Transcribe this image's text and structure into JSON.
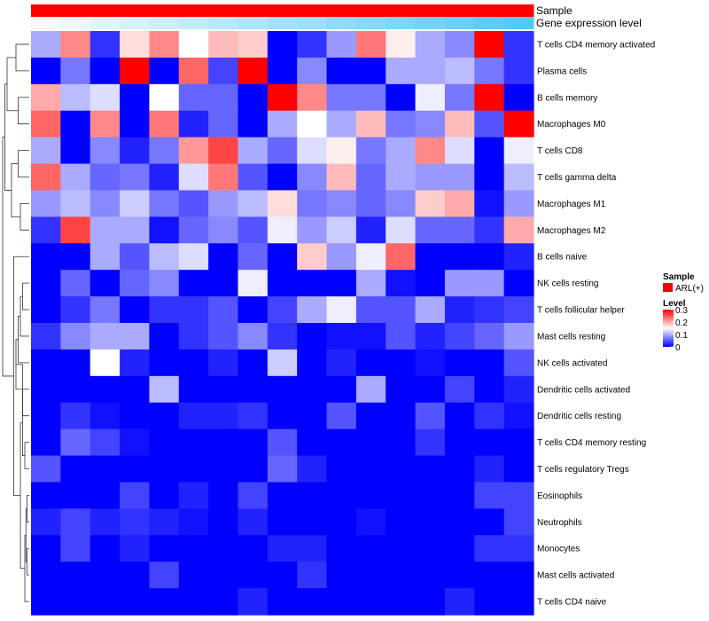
{
  "chart_data": {
    "type": "heatmap",
    "title": "",
    "annotation_tracks": [
      "Sample",
      "Gene expression level"
    ],
    "annotation_colors": {
      "sample": "#ff0000",
      "gene_low": "#f4fbfe",
      "gene_high": "#55c9f5"
    },
    "gene_expression_ramp": [
      0.0,
      0.06,
      0.13,
      0.19,
      0.25,
      0.31,
      0.38,
      0.44,
      0.5,
      0.56,
      0.63,
      0.69,
      0.75,
      0.81,
      0.88,
      0.94,
      1.0
    ],
    "rows": [
      "T cells CD4 memory activated",
      "Plasma cells",
      "B cells memory",
      "Macrophages M0",
      "T cells CD8",
      "T cells gamma delta",
      "Macrophages M1",
      "Macrophages M2",
      "B cells naive",
      "NK cells resting",
      "T cells follicular helper",
      "Mast cells resting",
      "NK cells activated",
      "Dendritic cells activated",
      "Dendritic cells resting",
      "T cells CD4 memory resting",
      "T cells regulatory  Tregs",
      "Eosinophils",
      "Neutrophils",
      "Monocytes",
      "Mast cells activated",
      "T cells CD4 naive"
    ],
    "n_columns": 17,
    "values": [
      [
        0.1,
        0.22,
        0.03,
        0.17,
        0.22,
        0.15,
        0.19,
        0.18,
        0.0,
        0.03,
        0.09,
        0.23,
        0.16,
        0.1,
        0.08,
        0.3,
        0.03
      ],
      [
        0.0,
        0.07,
        0.0,
        0.3,
        0.0,
        0.24,
        0.04,
        0.3,
        0.0,
        0.08,
        0.0,
        0.0,
        0.1,
        0.1,
        0.11,
        0.07,
        0.03
      ],
      [
        0.2,
        0.11,
        0.13,
        0.0,
        0.15,
        0.06,
        0.06,
        0.0,
        0.3,
        0.22,
        0.07,
        0.07,
        0.0,
        0.14,
        0.07,
        0.3,
        0.0
      ],
      [
        0.24,
        0.0,
        0.22,
        0.0,
        0.23,
        0.02,
        0.06,
        0.0,
        0.1,
        0.15,
        0.1,
        0.19,
        0.07,
        0.08,
        0.19,
        0.05,
        0.3
      ],
      [
        0.1,
        0.0,
        0.08,
        0.02,
        0.07,
        0.21,
        0.26,
        0.1,
        0.06,
        0.13,
        0.16,
        0.07,
        0.1,
        0.22,
        0.13,
        0.0,
        0.14
      ],
      [
        0.24,
        0.1,
        0.06,
        0.07,
        0.02,
        0.13,
        0.23,
        0.05,
        0.0,
        0.08,
        0.19,
        0.06,
        0.1,
        0.09,
        0.09,
        0.0,
        0.11
      ],
      [
        0.09,
        0.11,
        0.08,
        0.12,
        0.07,
        0.05,
        0.09,
        0.11,
        0.17,
        0.07,
        0.08,
        0.06,
        0.08,
        0.18,
        0.2,
        0.01,
        0.09
      ],
      [
        0.03,
        0.26,
        0.1,
        0.1,
        0.01,
        0.06,
        0.08,
        0.05,
        0.14,
        0.09,
        0.12,
        0.02,
        0.13,
        0.06,
        0.06,
        0.03,
        0.2
      ],
      [
        0.0,
        0.0,
        0.1,
        0.05,
        0.11,
        0.13,
        0.0,
        0.06,
        0.0,
        0.18,
        0.09,
        0.14,
        0.24,
        0.0,
        0.0,
        0.0,
        0.02
      ],
      [
        0.0,
        0.06,
        0.0,
        0.06,
        0.08,
        0.0,
        0.0,
        0.14,
        0.0,
        0.0,
        0.0,
        0.1,
        0.01,
        0.0,
        0.09,
        0.09,
        0.0
      ],
      [
        0.0,
        0.03,
        0.07,
        0.0,
        0.03,
        0.03,
        0.05,
        0.0,
        0.04,
        0.1,
        0.14,
        0.05,
        0.05,
        0.1,
        0.02,
        0.03,
        0.04
      ],
      [
        0.03,
        0.08,
        0.1,
        0.1,
        0.0,
        0.03,
        0.05,
        0.08,
        0.03,
        0.0,
        0.01,
        0.01,
        0.05,
        0.02,
        0.04,
        0.06,
        0.09
      ],
      [
        0.0,
        0.0,
        0.15,
        0.02,
        0.0,
        0.0,
        0.02,
        0.0,
        0.12,
        0.0,
        0.02,
        0.0,
        0.0,
        0.01,
        0.0,
        0.0,
        0.05
      ],
      [
        0.0,
        0.0,
        0.0,
        0.0,
        0.11,
        0.0,
        0.0,
        0.0,
        0.0,
        0.0,
        0.0,
        0.1,
        0.0,
        0.0,
        0.04,
        0.0,
        0.02
      ],
      [
        0.0,
        0.03,
        0.01,
        0.0,
        0.0,
        0.02,
        0.02,
        0.03,
        0.0,
        0.0,
        0.05,
        0.0,
        0.0,
        0.05,
        0.0,
        0.03,
        0.01
      ],
      [
        0.0,
        0.06,
        0.04,
        0.01,
        0.0,
        0.0,
        0.0,
        0.0,
        0.05,
        0.0,
        0.0,
        0.0,
        0.0,
        0.03,
        0.0,
        0.0,
        0.0
      ],
      [
        0.05,
        0.0,
        0.0,
        0.0,
        0.0,
        0.0,
        0.0,
        0.0,
        0.06,
        0.02,
        0.0,
        0.0,
        0.0,
        0.0,
        0.0,
        0.02,
        0.0
      ],
      [
        0.0,
        0.0,
        0.0,
        0.04,
        0.0,
        0.02,
        0.0,
        0.04,
        0.0,
        0.0,
        0.0,
        0.0,
        0.0,
        0.0,
        0.0,
        0.04,
        0.04
      ],
      [
        0.02,
        0.04,
        0.02,
        0.03,
        0.02,
        0.01,
        0.0,
        0.02,
        0.0,
        0.0,
        0.0,
        0.01,
        0.0,
        0.0,
        0.0,
        0.0,
        0.04
      ],
      [
        0.0,
        0.04,
        0.0,
        0.02,
        0.0,
        0.0,
        0.0,
        0.0,
        0.02,
        0.02,
        0.0,
        0.0,
        0.0,
        0.0,
        0.0,
        0.03,
        0.03
      ],
      [
        0.0,
        0.0,
        0.0,
        0.0,
        0.04,
        0.0,
        0.0,
        0.0,
        0.0,
        0.03,
        0.0,
        0.0,
        0.0,
        0.0,
        0.0,
        0.0,
        0.0
      ],
      [
        0.0,
        0.0,
        0.0,
        0.0,
        0.0,
        0.0,
        0.0,
        0.02,
        0.0,
        0.0,
        0.0,
        0.0,
        0.0,
        0.0,
        0.02,
        0.0,
        0.0
      ]
    ],
    "color_scale": {
      "min": 0,
      "mid": 0.15,
      "max": 0.3,
      "low": "#0000ff",
      "mid_color": "#ffffff",
      "high": "#ff0000"
    },
    "row_dendrogram": [
      {
        "a": 0,
        "b": 1,
        "h": 0.06
      },
      {
        "a": 2,
        "b": 3,
        "h": 0.05
      },
      {
        "a": 22,
        "b": 23,
        "h": 0.1
      },
      {
        "a": 4,
        "b": 5,
        "h": 0.05
      },
      {
        "a": 6,
        "b": 7,
        "h": 0.04
      },
      {
        "a": 25,
        "b": 26,
        "h": 0.08
      },
      {
        "a": 24,
        "b": 27,
        "h": 0.11
      },
      {
        "a": 9,
        "b": 10,
        "h": 0.03
      },
      {
        "a": 11,
        "b": 29,
        "h": 0.04
      },
      {
        "a": 12,
        "b": 30,
        "h": 0.05
      },
      {
        "a": 13,
        "b": 31,
        "h": 0.06
      },
      {
        "a": 14,
        "b": 32,
        "h": 0.03
      },
      {
        "a": 15,
        "b": 16,
        "h": 0.02
      },
      {
        "a": 33,
        "b": 34,
        "h": 0.03
      },
      {
        "a": 17,
        "b": 18,
        "h": 0.01
      },
      {
        "a": 19,
        "b": 20,
        "h": 0.01
      },
      {
        "a": 36,
        "b": 37,
        "h": 0.015
      },
      {
        "a": 38,
        "b": 21,
        "h": 0.02
      },
      {
        "a": 35,
        "b": 39,
        "h": 0.04
      },
      {
        "a": 8,
        "b": 40,
        "h": 0.07
      },
      {
        "a": 28,
        "b": 41,
        "h": 0.12
      }
    ],
    "legend": {
      "sample_title": "Sample",
      "sample_label": "ARL(+)",
      "level_title": "Level",
      "level_ticks": [
        0.3,
        0.2,
        0.1,
        0
      ]
    }
  }
}
